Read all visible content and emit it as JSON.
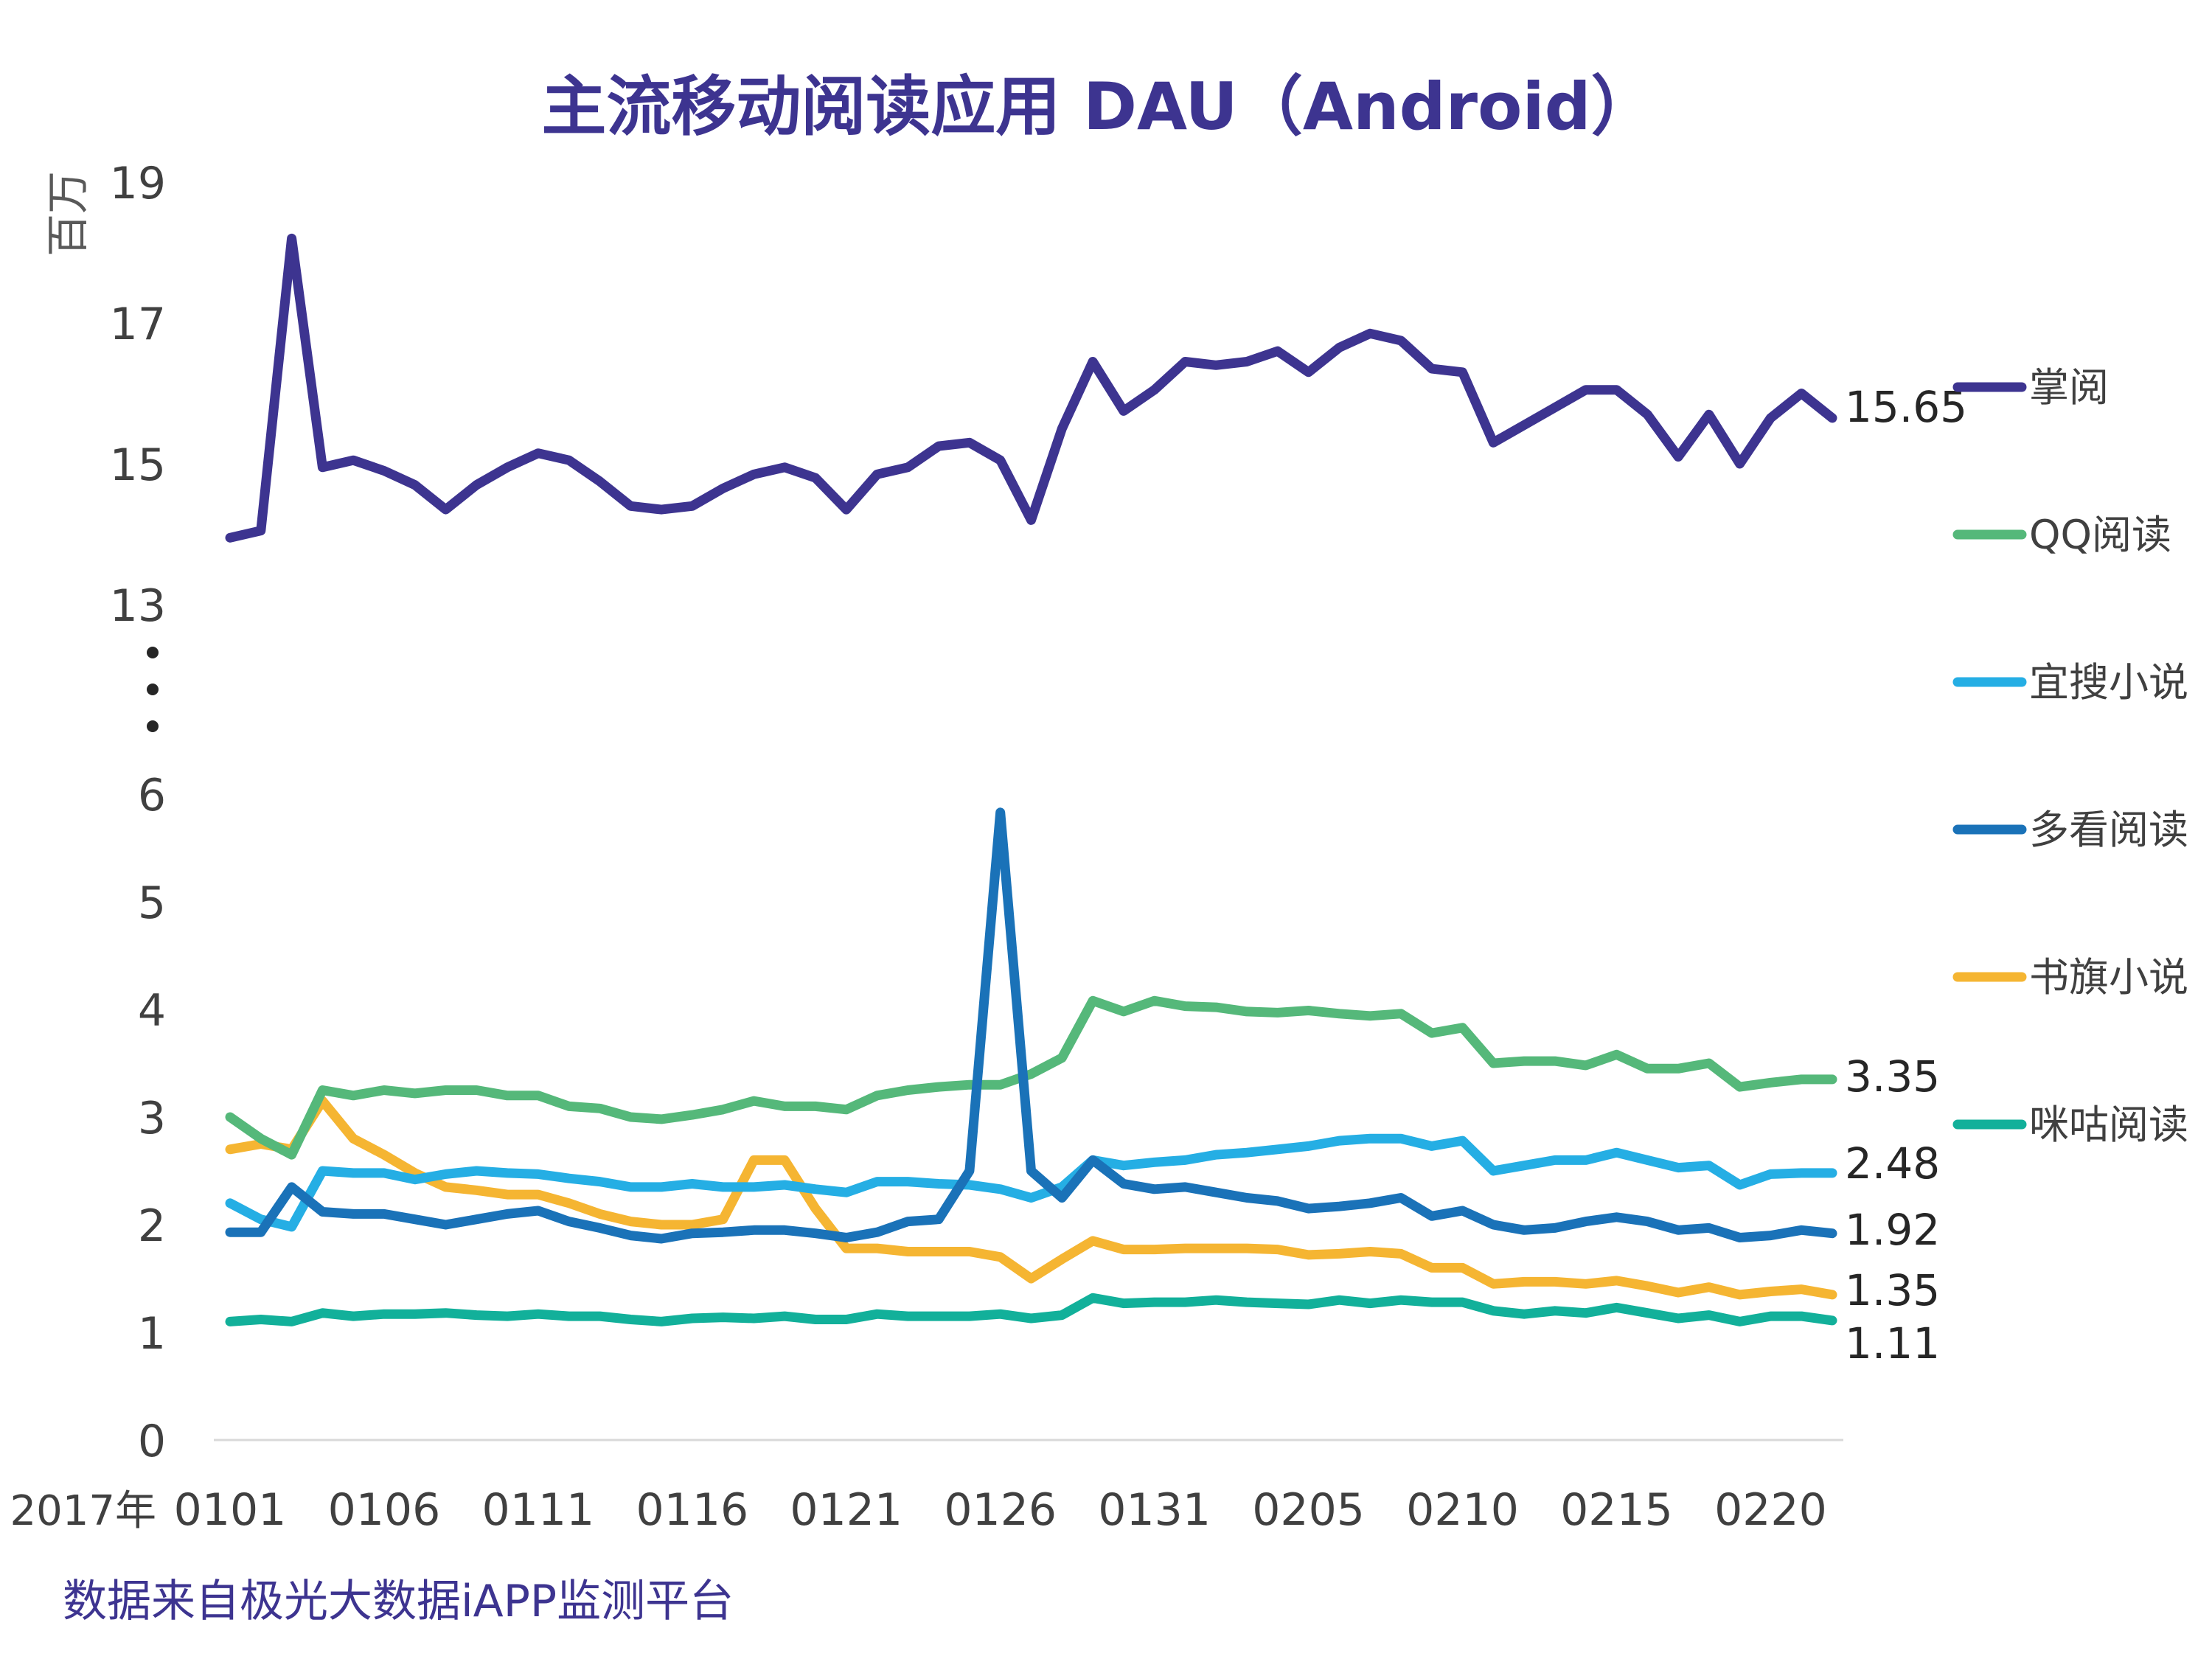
{
  "chart_data": {
    "type": "line",
    "title": "主流移动阅读应用 DAU（Android）",
    "unit_label": "百万",
    "x_prefix": "2017年",
    "source": "数据来自极光大数据iAPP监测平台",
    "x_tick_labels": [
      "0101",
      "0106",
      "0111",
      "0116",
      "0121",
      "0126",
      "0131",
      "0205",
      "0210",
      "0215",
      "0220"
    ],
    "ylabel_ticks_lower": [
      "0",
      "1",
      "2",
      "3",
      "4",
      "5",
      "6"
    ],
    "ylabel_ticks_upper": [
      "13",
      "15",
      "17",
      "19"
    ],
    "axis_break": true,
    "ylim_lower": [
      0,
      6
    ],
    "ylim_upper": [
      13,
      19
    ],
    "num_points": 53,
    "series": [
      {
        "name": "掌阅",
        "color": "#3d3490",
        "end_label": "15.65",
        "values": [
          13.95,
          14.05,
          18.2,
          14.95,
          15.05,
          14.9,
          14.7,
          14.35,
          14.7,
          14.95,
          15.15,
          15.05,
          14.75,
          14.4,
          14.35,
          14.4,
          14.65,
          14.85,
          14.95,
          14.8,
          14.35,
          14.85,
          14.95,
          15.25,
          15.3,
          15.05,
          14.2,
          15.5,
          16.45,
          15.75,
          16.05,
          16.45,
          16.4,
          16.45,
          16.6,
          16.3,
          16.65,
          16.85,
          16.75,
          16.35,
          16.3,
          15.3,
          15.55,
          15.8,
          16.05,
          16.05,
          15.7,
          15.1,
          15.7,
          15.0,
          15.65,
          16.0,
          15.65
        ]
      },
      {
        "name": "QQ阅读",
        "color": "#55b87a",
        "end_label": "3.35",
        "values": [
          3.0,
          2.8,
          2.65,
          3.25,
          3.2,
          3.25,
          3.22,
          3.25,
          3.25,
          3.2,
          3.2,
          3.1,
          3.08,
          3.0,
          2.98,
          3.02,
          3.07,
          3.15,
          3.1,
          3.1,
          3.07,
          3.2,
          3.25,
          3.28,
          3.3,
          3.3,
          3.4,
          3.55,
          4.08,
          3.98,
          4.08,
          4.03,
          4.02,
          3.98,
          3.97,
          3.99,
          3.96,
          3.94,
          3.96,
          3.78,
          3.83,
          3.5,
          3.52,
          3.52,
          3.48,
          3.58,
          3.45,
          3.45,
          3.5,
          3.28,
          3.32,
          3.35,
          3.35
        ]
      },
      {
        "name": "宜搜小说",
        "color": "#25aee4",
        "end_label": "2.48",
        "values": [
          2.2,
          2.05,
          1.98,
          2.5,
          2.48,
          2.48,
          2.42,
          2.47,
          2.5,
          2.48,
          2.47,
          2.43,
          2.4,
          2.35,
          2.35,
          2.38,
          2.35,
          2.35,
          2.37,
          2.33,
          2.3,
          2.4,
          2.4,
          2.38,
          2.37,
          2.33,
          2.25,
          2.35,
          2.6,
          2.55,
          2.58,
          2.6,
          2.65,
          2.67,
          2.7,
          2.73,
          2.78,
          2.8,
          2.8,
          2.73,
          2.78,
          2.5,
          2.55,
          2.6,
          2.6,
          2.67,
          2.6,
          2.53,
          2.55,
          2.37,
          2.47,
          2.48,
          2.48
        ]
      },
      {
        "name": "多看阅读",
        "color": "#1a72b8",
        "end_label": "1.92",
        "values": [
          1.93,
          1.93,
          2.35,
          2.12,
          2.1,
          2.1,
          2.05,
          2.0,
          2.05,
          2.1,
          2.13,
          2.03,
          1.97,
          1.9,
          1.87,
          1.92,
          1.93,
          1.95,
          1.95,
          1.92,
          1.88,
          1.93,
          2.03,
          2.05,
          2.5,
          5.83,
          2.5,
          2.25,
          2.6,
          2.38,
          2.33,
          2.35,
          2.3,
          2.25,
          2.22,
          2.15,
          2.17,
          2.2,
          2.25,
          2.08,
          2.13,
          2.0,
          1.95,
          1.97,
          2.03,
          2.07,
          2.03,
          1.95,
          1.97,
          1.88,
          1.9,
          1.95,
          1.92
        ]
      },
      {
        "name": "书旗小说",
        "color": "#f5b532",
        "end_label": "1.35",
        "values": [
          2.7,
          2.75,
          2.7,
          3.15,
          2.8,
          2.65,
          2.48,
          2.35,
          2.32,
          2.28,
          2.28,
          2.2,
          2.1,
          2.03,
          2.0,
          2.0,
          2.05,
          2.6,
          2.6,
          2.15,
          1.78,
          1.78,
          1.75,
          1.75,
          1.75,
          1.7,
          1.5,
          1.68,
          1.85,
          1.77,
          1.77,
          1.78,
          1.78,
          1.78,
          1.77,
          1.72,
          1.73,
          1.75,
          1.73,
          1.6,
          1.6,
          1.45,
          1.47,
          1.47,
          1.45,
          1.48,
          1.43,
          1.37,
          1.42,
          1.35,
          1.38,
          1.4,
          1.35
        ]
      },
      {
        "name": "咪咕阅读",
        "color": "#12b09a",
        "end_label": "1.11",
        "values": [
          1.1,
          1.12,
          1.1,
          1.18,
          1.15,
          1.17,
          1.17,
          1.18,
          1.16,
          1.15,
          1.17,
          1.15,
          1.15,
          1.12,
          1.1,
          1.13,
          1.14,
          1.13,
          1.15,
          1.12,
          1.12,
          1.17,
          1.15,
          1.15,
          1.15,
          1.17,
          1.13,
          1.16,
          1.32,
          1.27,
          1.28,
          1.28,
          1.3,
          1.28,
          1.27,
          1.26,
          1.3,
          1.27,
          1.3,
          1.28,
          1.28,
          1.2,
          1.17,
          1.2,
          1.18,
          1.23,
          1.18,
          1.13,
          1.16,
          1.1,
          1.15,
          1.15,
          1.11
        ]
      }
    ]
  }
}
